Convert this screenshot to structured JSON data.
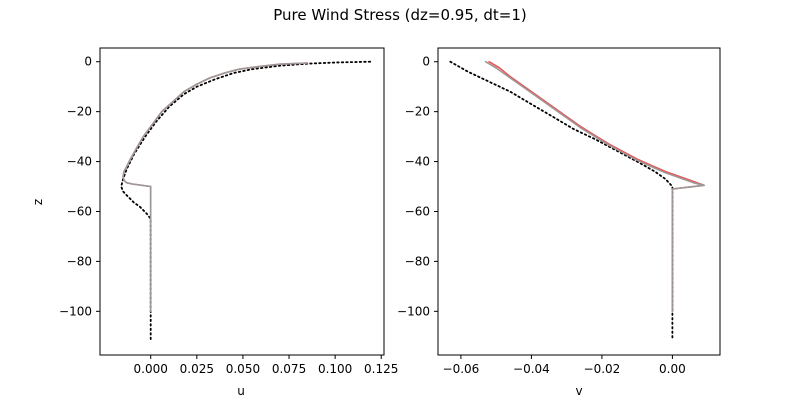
{
  "chart_data": {
    "title": "Pure Wind Stress (dz=0.95, dt=1)",
    "panels": [
      {
        "type": "line",
        "xlabel": "u",
        "ylabel": "z",
        "xlim": [
          -0.0275,
          0.1265
        ],
        "ylim": [
          -117.5,
          5.5
        ],
        "xticks": [
          0.0,
          0.025,
          0.05,
          0.075,
          0.1,
          0.125
        ],
        "xtick_labels": [
          "0.000",
          "0.025",
          "0.050",
          "0.075",
          "0.100",
          "0.125"
        ],
        "yticks": [
          0,
          -20,
          -40,
          -60,
          -80,
          -100
        ],
        "ytick_labels": [
          "0",
          "−20",
          "−40",
          "−60",
          "−80",
          "−100"
        ],
        "series": [
          {
            "style": "dotted",
            "color": "#000000",
            "x": [
              0.119,
              0.1,
              0.085,
              0.07,
              0.055,
              0.045,
              0.035,
              0.025,
              0.018,
              0.01,
              0.003,
              -0.003,
              -0.009,
              -0.013,
              -0.015,
              -0.016,
              -0.015,
              -0.013,
              -0.011,
              -0.009,
              -0.006,
              -0.004,
              -0.002,
              -0.001,
              0.0,
              0.0,
              0.0,
              0.0,
              0.0
            ],
            "y": [
              0,
              -0.3,
              -0.8,
              -1.6,
              -3,
              -4.5,
              -7,
              -10,
              -13,
              -18,
              -24,
              -30,
              -37,
              -43,
              -47,
              -50,
              -52,
              -53.5,
              -55,
              -56.5,
              -58,
              -59.5,
              -61,
              -62,
              -63,
              -70,
              -80,
              -100,
              -112
            ]
          },
          {
            "style": "solid",
            "color": "#ee5555",
            "x": [
              0.085,
              0.07,
              0.058,
              0.048,
              0.04,
              0.032,
              0.025,
              0.018,
              0.012,
              0.006,
              0.001,
              -0.004,
              -0.008,
              -0.011,
              -0.013,
              -0.0145,
              -0.015,
              -0.0145,
              -0.013,
              -0.01,
              0.0,
              0.0,
              0.0,
              0.0
            ],
            "y": [
              -0.5,
              -1,
              -2,
              -3,
              -4.5,
              -6.5,
              -9,
              -12,
              -16,
              -20,
              -25,
              -30,
              -35,
              -39,
              -42,
              -44,
              -46,
              -47.5,
              -48.5,
              -49,
              -50,
              -60,
              -80,
              -100
            ]
          },
          {
            "style": "solid",
            "color": "#999999",
            "x": [
              0.085,
              0.07,
              0.058,
              0.048,
              0.04,
              0.032,
              0.025,
              0.018,
              0.012,
              0.006,
              0.001,
              -0.004,
              -0.008,
              -0.011,
              -0.013,
              -0.0145,
              -0.015,
              -0.0145,
              -0.013,
              -0.01,
              0.0,
              0.0,
              0.0,
              0.0
            ],
            "y": [
              -0.5,
              -1,
              -2,
              -3,
              -4.5,
              -6.5,
              -9,
              -12,
              -16,
              -20,
              -25,
              -30,
              -35,
              -39,
              -42,
              -44,
              -46,
              -47.5,
              -48.5,
              -49,
              -50,
              -60,
              -80,
              -100
            ]
          }
        ]
      },
      {
        "type": "line",
        "xlabel": "v",
        "ylabel": "",
        "xlim": [
          -0.0665,
          0.0135
        ],
        "ylim": [
          -117.5,
          5.5
        ],
        "xticks": [
          -0.06,
          -0.04,
          -0.02,
          0.0
        ],
        "xtick_labels": [
          "−0.06",
          "−0.04",
          "−0.02",
          "0.00"
        ],
        "yticks": [
          0,
          -20,
          -40,
          -60,
          -80,
          -100
        ],
        "ytick_labels": [
          "0",
          "−20",
          "−40",
          "−60",
          "−80",
          "−100"
        ],
        "series": [
          {
            "style": "dotted",
            "color": "#000000",
            "x": [
              -0.063,
              -0.058,
              -0.052,
              -0.046,
              -0.04,
              -0.034,
              -0.028,
              -0.022,
              -0.016,
              -0.01,
              -0.005,
              -0.002,
              0.0,
              0.0,
              0.0,
              0.0
            ],
            "y": [
              0,
              -4,
              -8,
              -12,
              -17,
              -22,
              -27,
              -31,
              -35.5,
              -40,
              -44,
              -47,
              -50,
              -60,
              -80,
              -111
            ]
          },
          {
            "style": "solid",
            "color": "#ee5555",
            "x": [
              -0.052,
              -0.049,
              -0.046,
              -0.042,
              -0.038,
              -0.034,
              -0.03,
              -0.026,
              -0.022,
              -0.018,
              -0.014,
              -0.01,
              -0.006,
              -0.002,
              0.002,
              0.006,
              0.009,
              0.0,
              0.0,
              0.0,
              0.0
            ],
            "y": [
              0,
              -2.5,
              -6,
              -10,
              -14,
              -18,
              -22,
              -26,
              -29.5,
              -33,
              -36,
              -39,
              -41.5,
              -44,
              -46,
              -48,
              -49.5,
              -51,
              -60,
              -80,
              -100
            ]
          },
          {
            "style": "solid",
            "color": "#999999",
            "x": [
              -0.053,
              -0.05,
              -0.046,
              -0.042,
              -0.038,
              -0.034,
              -0.03,
              -0.026,
              -0.022,
              -0.018,
              -0.014,
              -0.01,
              -0.006,
              -0.002,
              0.002,
              0.006,
              0.009,
              0.0,
              0.0,
              0.0,
              0.0
            ],
            "y": [
              0,
              -2.5,
              -6.5,
              -10.5,
              -14.5,
              -18.5,
              -22.5,
              -26.5,
              -30,
              -33.5,
              -36.5,
              -39.5,
              -42,
              -44.5,
              -46.5,
              -48.5,
              -49.5,
              -51,
              -60,
              -80,
              -100
            ]
          }
        ]
      }
    ]
  }
}
